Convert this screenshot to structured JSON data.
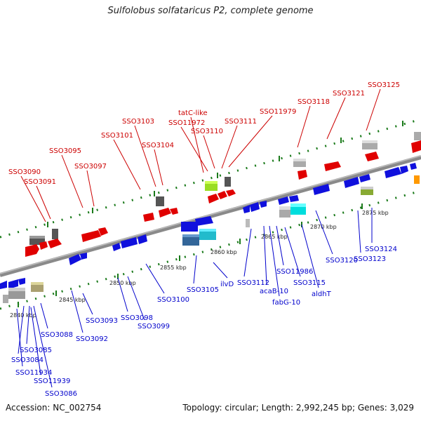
{
  "title": "Sulfolobus solfataricus P2, complete genome",
  "footer": {
    "accession": "Accession: NC_002754",
    "summary": "Topology: circular; Length: 2,992,245 bp; Genes: 3,029"
  },
  "colors": {
    "top_label": "#cc0000",
    "bottom_label": "#0000cc",
    "backbone": "#8a8a8a",
    "tick": "#1a7a1a"
  },
  "scale_ticks": [
    "2840 kbp",
    "2845 kbp",
    "2850 kbp",
    "2855 kbp",
    "2860 kbp",
    "2865 kbp",
    "2870 kbp",
    "2875 kbp"
  ],
  "top_labels": [
    "SSO3090",
    "SSO3091",
    "SSO3095",
    "SSO3097",
    "SSO3101",
    "SSO3103",
    "SSO3104",
    "tatC-like",
    "SSO11972",
    "SSO3110",
    "SSO3111",
    "SSO11979",
    "SSO3118",
    "SSO3121",
    "SSO3125"
  ],
  "bottom_labels": [
    "SSO3088",
    "SSO3085",
    "SSO3084",
    "SSO11934",
    "SSO11939",
    "SSO3086",
    "SSO3093",
    "SSO3092",
    "SSO3098",
    "SSO3099",
    "SSO3100",
    "SSO3105",
    "ilvD",
    "SSO3112",
    "acaB-10",
    "fabG-10",
    "SSO11986",
    "SSO3115",
    "aldhT",
    "SSO3120",
    "SSO3123",
    "SSO3124"
  ]
}
